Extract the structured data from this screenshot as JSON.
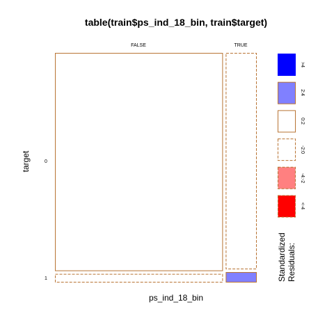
{
  "chart_data": {
    "type": "mosaic",
    "title": "table(train$ps_ind_18_bin, train$target)",
    "xlabel": "ps_ind_18_bin",
    "ylabel": "target",
    "x_levels": [
      "FALSE",
      "TRUE"
    ],
    "y_levels": [
      "0",
      "1"
    ],
    "x_proportions": [
      0.844,
      0.156
    ],
    "y_proportions_within_x": [
      [
        0.962,
        0.038
      ],
      [
        0.954,
        0.046
      ]
    ],
    "residual_class": [
      [
        "0:2",
        "-2:0"
      ],
      [
        "-2:0",
        "2:4"
      ]
    ],
    "legend": {
      "title_line1": "Standardized",
      "title_line2": "Residuals:",
      "entries": [
        {
          "label": ">4",
          "fill": "#0000ff",
          "border": "#0000ff",
          "dashed": false
        },
        {
          "label": "2:4",
          "fill": "#8080ff",
          "border": "#b87333",
          "dashed": false
        },
        {
          "label": "0:2",
          "fill": "#ffffff",
          "border": "#b87333",
          "dashed": false
        },
        {
          "label": "-2:0",
          "fill": "#ffffff",
          "border": "#b87333",
          "dashed": true
        },
        {
          "label": "-4:-2",
          "fill": "#ff8080",
          "border": "#b87333",
          "dashed": true
        },
        {
          "label": "<-4",
          "fill": "#ff0000",
          "border": "#b87333",
          "dashed": true
        }
      ]
    }
  }
}
